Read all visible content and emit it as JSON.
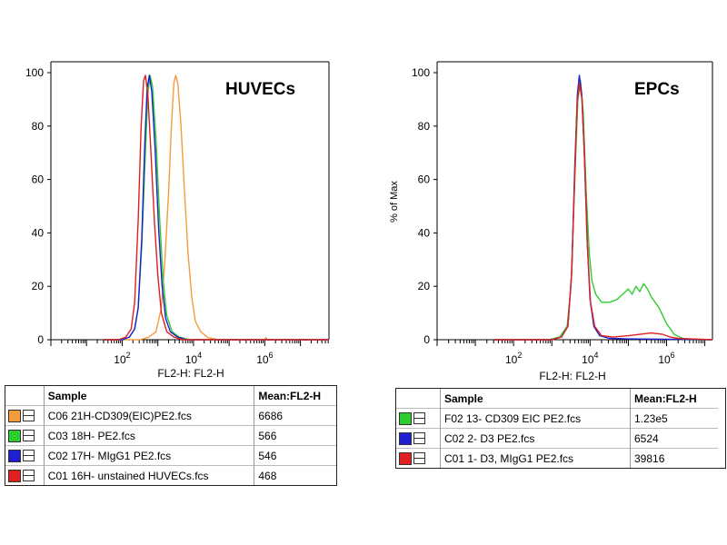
{
  "chart_data": [
    {
      "type": "histogram",
      "title": "HUVECs",
      "xlabel": "FL2-H: FL2-H",
      "ylabel": "",
      "xscale": "log",
      "xlim_log10": [
        0,
        7.8
      ],
      "ylim": [
        0,
        100
      ],
      "yticks": [
        0,
        20,
        40,
        60,
        80,
        100
      ],
      "xtick_labels": [
        {
          "base": "10",
          "exp": "2",
          "pos": 2
        },
        {
          "base": "10",
          "exp": "4",
          "pos": 4
        },
        {
          "base": "10",
          "exp": "6",
          "pos": 6
        }
      ],
      "series": [
        {
          "name": "C06 21H-CD309(EIC)PE2.fcs",
          "mean": "6686",
          "color": "#f39c3c",
          "points": [
            [
              1.5,
              0
            ],
            [
              2.5,
              0
            ],
            [
              2.75,
              1
            ],
            [
              2.95,
              3
            ],
            [
              3.1,
              12
            ],
            [
              3.2,
              30
            ],
            [
              3.3,
              55
            ],
            [
              3.38,
              80
            ],
            [
              3.45,
              96
            ],
            [
              3.5,
              99
            ],
            [
              3.56,
              96
            ],
            [
              3.65,
              80
            ],
            [
              3.75,
              55
            ],
            [
              3.85,
              32
            ],
            [
              3.95,
              16
            ],
            [
              4.05,
              7
            ],
            [
              4.2,
              3
            ],
            [
              4.4,
              0.8
            ],
            [
              4.7,
              0
            ],
            [
              5.0,
              0
            ],
            [
              6.0,
              0
            ],
            [
              6.03,
              0.8
            ],
            [
              6.06,
              0
            ],
            [
              7.8,
              0
            ]
          ]
        },
        {
          "name": "C03 18H- PE2.fcs",
          "mean": "566",
          "color": "#2ecc2e",
          "points": [
            [
              1.5,
              0
            ],
            [
              2.0,
              0
            ],
            [
              2.2,
              1
            ],
            [
              2.35,
              4
            ],
            [
              2.45,
              12
            ],
            [
              2.55,
              35
            ],
            [
              2.65,
              70
            ],
            [
              2.72,
              92
            ],
            [
              2.78,
              99
            ],
            [
              2.85,
              95
            ],
            [
              2.95,
              75
            ],
            [
              3.05,
              45
            ],
            [
              3.15,
              22
            ],
            [
              3.25,
              9
            ],
            [
              3.4,
              3
            ],
            [
              3.6,
              1
            ],
            [
              3.9,
              0
            ],
            [
              7.8,
              0
            ]
          ]
        },
        {
          "name": "C02 17H- MIgG1 PE2.fcs",
          "mean": "546",
          "color": "#2020d0",
          "points": [
            [
              1.5,
              0
            ],
            [
              2.0,
              0
            ],
            [
              2.2,
              1
            ],
            [
              2.35,
              4
            ],
            [
              2.45,
              12
            ],
            [
              2.55,
              38
            ],
            [
              2.63,
              72
            ],
            [
              2.7,
              94
            ],
            [
              2.76,
              99
            ],
            [
              2.83,
              93
            ],
            [
              2.92,
              72
            ],
            [
              3.02,
              42
            ],
            [
              3.12,
              20
            ],
            [
              3.22,
              8
            ],
            [
              3.35,
              3
            ],
            [
              3.55,
              1
            ],
            [
              3.8,
              0
            ],
            [
              7.8,
              0
            ]
          ]
        },
        {
          "name": "C01 16H- unstained HUVECs.fcs",
          "mean": "468",
          "color": "#e02020",
          "points": [
            [
              1.5,
              0
            ],
            [
              1.9,
              0
            ],
            [
              2.1,
              1
            ],
            [
              2.25,
              4
            ],
            [
              2.35,
              14
            ],
            [
              2.45,
              45
            ],
            [
              2.53,
              80
            ],
            [
              2.6,
              97
            ],
            [
              2.65,
              99
            ],
            [
              2.72,
              92
            ],
            [
              2.8,
              72
            ],
            [
              2.9,
              45
            ],
            [
              3.0,
              24
            ],
            [
              3.1,
              10
            ],
            [
              3.25,
              3
            ],
            [
              3.45,
              1
            ],
            [
              3.7,
              0
            ],
            [
              7.8,
              0
            ]
          ]
        }
      ],
      "legend_header": {
        "sample": "Sample",
        "mean": "Mean:FL2-H"
      }
    },
    {
      "type": "histogram",
      "title": "EPCs",
      "xlabel": "FL2-H: FL2-H",
      "ylabel": "% of Max",
      "xscale": "log",
      "xlim_log10": [
        0,
        7.2
      ],
      "ylim": [
        0,
        100
      ],
      "yticks": [
        0,
        20,
        40,
        60,
        80,
        100
      ],
      "xtick_labels": [
        {
          "base": "10",
          "exp": "2",
          "pos": 2
        },
        {
          "base": "10",
          "exp": "4",
          "pos": 4
        },
        {
          "base": "10",
          "exp": "6",
          "pos": 6
        }
      ],
      "series": [
        {
          "name": "F02 13- CD309 EIC PE2.fcs",
          "mean": "1.23e5",
          "color": "#2ecc2e",
          "points": [
            [
              1.5,
              0
            ],
            [
              2.9,
              0
            ],
            [
              3.2,
              1
            ],
            [
              3.4,
              5
            ],
            [
              3.5,
              20
            ],
            [
              3.6,
              60
            ],
            [
              3.68,
              90
            ],
            [
              3.75,
              97
            ],
            [
              3.82,
              85
            ],
            [
              3.9,
              55
            ],
            [
              3.98,
              32
            ],
            [
              4.05,
              22
            ],
            [
              4.15,
              17
            ],
            [
              4.3,
              14
            ],
            [
              4.5,
              14
            ],
            [
              4.7,
              15
            ],
            [
              4.85,
              17
            ],
            [
              5.0,
              19
            ],
            [
              5.1,
              17
            ],
            [
              5.2,
              20
            ],
            [
              5.3,
              18
            ],
            [
              5.4,
              21
            ],
            [
              5.5,
              19
            ],
            [
              5.6,
              16
            ],
            [
              5.7,
              14
            ],
            [
              5.8,
              12
            ],
            [
              5.9,
              9
            ],
            [
              6.0,
              6
            ],
            [
              6.1,
              4
            ],
            [
              6.2,
              2
            ],
            [
              6.35,
              1
            ],
            [
              6.5,
              0
            ],
            [
              7.2,
              0
            ]
          ]
        },
        {
          "name": "C02 2- D3 PE2.fcs",
          "mean": "6524",
          "color": "#2020d0",
          "points": [
            [
              1.5,
              0
            ],
            [
              3.0,
              0
            ],
            [
              3.25,
              1
            ],
            [
              3.42,
              5
            ],
            [
              3.52,
              25
            ],
            [
              3.6,
              65
            ],
            [
              3.67,
              92
            ],
            [
              3.72,
              99
            ],
            [
              3.78,
              92
            ],
            [
              3.85,
              70
            ],
            [
              3.92,
              38
            ],
            [
              4.0,
              15
            ],
            [
              4.1,
              5
            ],
            [
              4.25,
              1.5
            ],
            [
              4.5,
              0.5
            ],
            [
              5.0,
              0.3
            ],
            [
              6.0,
              0.2
            ],
            [
              7.2,
              0
            ]
          ]
        },
        {
          "name": "C01 1- D3, MIgG1 PE2.fcs",
          "mean": "39816",
          "color": "#e02020",
          "points": [
            [
              1.5,
              0
            ],
            [
              3.0,
              0
            ],
            [
              3.25,
              1
            ],
            [
              3.42,
              5
            ],
            [
              3.52,
              25
            ],
            [
              3.6,
              62
            ],
            [
              3.66,
              88
            ],
            [
              3.72,
              96
            ],
            [
              3.79,
              90
            ],
            [
              3.86,
              66
            ],
            [
              3.93,
              35
            ],
            [
              4.01,
              14
            ],
            [
              4.12,
              5
            ],
            [
              4.3,
              1.5
            ],
            [
              4.6,
              1
            ],
            [
              5.0,
              1.5
            ],
            [
              5.3,
              2
            ],
            [
              5.6,
              2.5
            ],
            [
              5.9,
              2
            ],
            [
              6.1,
              1
            ],
            [
              6.3,
              0.5
            ],
            [
              7.2,
              0
            ]
          ]
        }
      ],
      "legend_header": {
        "sample": "Sample",
        "mean": "Mean:FL2-H"
      }
    }
  ]
}
